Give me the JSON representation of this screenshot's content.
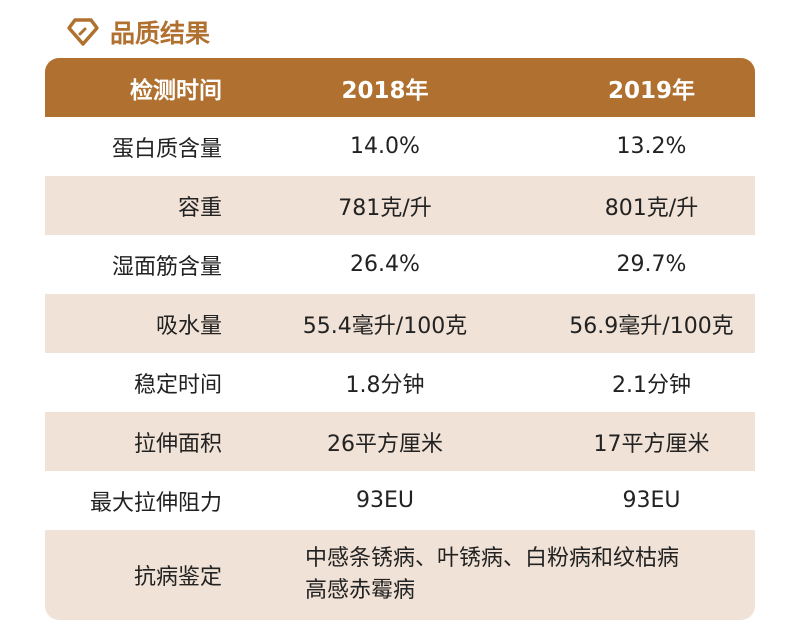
{
  "title": "品质结果",
  "colors": {
    "accent": "#b0702f",
    "row_alt": "#f0e2d6"
  },
  "header": [
    "检测时间",
    "2018年",
    "2019年"
  ],
  "rows": [
    {
      "label": "蛋白质含量",
      "y2018": "14.0%",
      "y2019": "13.2%"
    },
    {
      "label": "容重",
      "y2018": "781克/升",
      "y2019": "801克/升"
    },
    {
      "label": "湿面筋含量",
      "y2018": "26.4%",
      "y2019": "29.7%"
    },
    {
      "label": "吸水量",
      "y2018": "55.4毫升/100克",
      "y2019": "56.9毫升/100克"
    },
    {
      "label": "稳定时间",
      "y2018": "1.8分钟",
      "y2019": "2.1分钟"
    },
    {
      "label": "拉伸面积",
      "y2018": "26平方厘米",
      "y2019": "17平方厘米"
    },
    {
      "label": "最大拉伸阻力",
      "y2018": "93EU",
      "y2019": "93EU"
    }
  ],
  "disease": {
    "label": "抗病鉴定",
    "line1": "中感条锈病、叶锈病、白粉病和纹枯病",
    "line2": "高感赤霉病"
  }
}
